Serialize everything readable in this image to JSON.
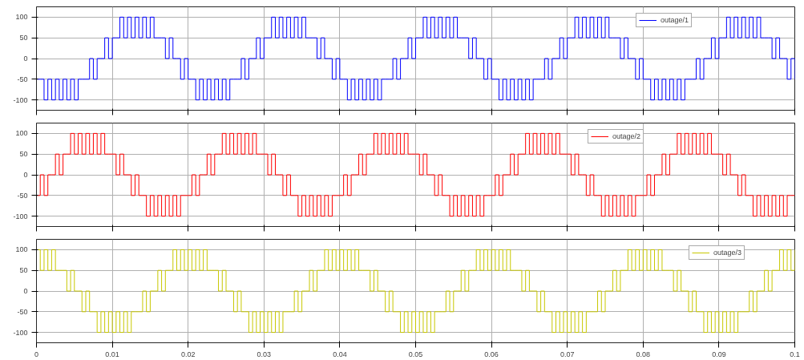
{
  "chart_data": [
    {
      "type": "step",
      "x": [
        0,
        0.0005,
        0.001,
        0.0015,
        0.002,
        0.0025,
        0.003,
        0.0035,
        0.004,
        0.0045,
        0.005,
        0.0055,
        0.006,
        0.0065,
        0.007,
        0.0075,
        0.008,
        0.0085,
        0.009,
        0.0095,
        0.01,
        0.0105,
        0.011,
        0.0115,
        0.012,
        0.0125,
        0.013,
        0.0135,
        0.014,
        0.0145,
        0.015,
        0.0155,
        0.016,
        0.0165,
        0.017,
        0.0175,
        0.018,
        0.0185,
        0.019,
        0.0195,
        0.02,
        0.0205,
        0.021,
        0.0215,
        0.022,
        0.0225,
        0.023,
        0.0235,
        0.024,
        0.0245,
        0.025,
        0.0255,
        0.026,
        0.0265,
        0.027,
        0.0275,
        0.028,
        0.0285,
        0.029,
        0.0295,
        0.03,
        0.0305,
        0.031,
        0.0315,
        0.032,
        0.0325,
        0.033,
        0.0335,
        0.034,
        0.0345,
        0.035,
        0.0355,
        0.036,
        0.0365,
        0.037,
        0.0375,
        0.038,
        0.0385,
        0.039,
        0.0395,
        0.04,
        0.0405,
        0.041,
        0.0415,
        0.042,
        0.0425,
        0.043,
        0.0435,
        0.044,
        0.0445,
        0.045,
        0.0455,
        0.046,
        0.0465,
        0.047,
        0.0475,
        0.048,
        0.0485,
        0.049,
        0.0495,
        0.05,
        0.0505,
        0.051,
        0.0515,
        0.052,
        0.0525,
        0.053,
        0.0535,
        0.054,
        0.0545,
        0.055,
        0.0555,
        0.056,
        0.0565,
        0.057,
        0.0575,
        0.058,
        0.0585,
        0.059,
        0.0595,
        0.06,
        0.0605,
        0.061,
        0.0615,
        0.062,
        0.0625,
        0.063,
        0.0635,
        0.064,
        0.0645,
        0.065,
        0.0655,
        0.066,
        0.0665,
        0.067,
        0.0675,
        0.068,
        0.0685,
        0.069,
        0.0695,
        0.07,
        0.0705,
        0.071,
        0.0715,
        0.072,
        0.0725,
        0.073,
        0.0735,
        0.074,
        0.0745,
        0.075,
        0.0755,
        0.076,
        0.0765,
        0.077,
        0.0775,
        0.078,
        0.0785,
        0.079,
        0.0795,
        0.08,
        0.0805,
        0.081,
        0.0815,
        0.082,
        0.0825,
        0.083,
        0.0835,
        0.084,
        0.0845,
        0.085,
        0.0855,
        0.086,
        0.0865,
        0.087,
        0.0875,
        0.088,
        0.0885,
        0.089,
        0.0895,
        0.09,
        0.0905,
        0.091,
        0.0915,
        0.092,
        0.0925,
        0.093,
        0.0935,
        0.094,
        0.0945,
        0.095,
        0.0955,
        0.096,
        0.0965,
        0.097,
        0.0975,
        0.098,
        0.0985,
        0.099,
        0.0995,
        0.1
      ],
      "series": [
        {
          "name": "outage/1",
          "color": "#0000ff",
          "values": [
            -50,
            -50,
            -100,
            -50,
            -100,
            -50,
            -100,
            -50,
            -100,
            -50,
            -100,
            -50,
            -50,
            -50,
            0,
            -50,
            0,
            0,
            50,
            0,
            50,
            50,
            100,
            50,
            100,
            50,
            100,
            50,
            100,
            50,
            100,
            50,
            50,
            50,
            0,
            50,
            0,
            0,
            -50,
            0,
            -50,
            -50,
            -100,
            -50,
            -100,
            -50,
            -100,
            -50,
            -100,
            -50,
            -100,
            -50,
            -50,
            -50,
            0,
            -50,
            0,
            0,
            50,
            0,
            50,
            50,
            100,
            50,
            100,
            50,
            100,
            50,
            100,
            50,
            100,
            50,
            50,
            50,
            0,
            50,
            0,
            0,
            -50,
            0,
            -50,
            -50,
            -100,
            -50,
            -100,
            -50,
            -100,
            -50,
            -100,
            -50,
            -100,
            -50,
            -50,
            -50,
            0,
            -50,
            0,
            0,
            50,
            0,
            50,
            50,
            100,
            50,
            100,
            50,
            100,
            50,
            100,
            50,
            100,
            50,
            50,
            50,
            0,
            50,
            0,
            0,
            -50,
            0,
            -50,
            -50,
            -100,
            -50,
            -100,
            -50,
            -100,
            -50,
            -100,
            -50,
            -100,
            -50,
            -50,
            -50,
            0,
            -50,
            0,
            0,
            50,
            0,
            50,
            50,
            100,
            50,
            100,
            50,
            100,
            50,
            100,
            50,
            100,
            50,
            50,
            50,
            0,
            50,
            0,
            0,
            -50,
            0,
            -50,
            -50,
            -100,
            -50,
            -100,
            -50,
            -100,
            -50,
            -100,
            -50,
            -100,
            -50,
            -50,
            -50,
            0,
            -50,
            0,
            0,
            50,
            0,
            50,
            50,
            100,
            50,
            100,
            50,
            100,
            50,
            100,
            50,
            100,
            50,
            50,
            50,
            0,
            50,
            0,
            0,
            -50,
            0,
            -50
          ]
        }
      ],
      "xlim": [
        0,
        0.1
      ],
      "xticks": [
        0,
        0.01,
        0.02,
        0.03,
        0.04,
        0.05,
        0.06,
        0.07,
        0.08,
        0.09,
        0.1
      ],
      "ylim": [
        -125,
        125
      ],
      "yticks": [
        -100,
        -50,
        0,
        50,
        100
      ],
      "grid": true,
      "legend": "top right",
      "tick_labels": "y"
    },
    {
      "type": "step",
      "x": [
        0,
        0.0005,
        0.001,
        0.0015,
        0.002,
        0.0025,
        0.003,
        0.0035,
        0.004,
        0.0045,
        0.005,
        0.0055,
        0.006,
        0.0065,
        0.007,
        0.0075,
        0.008,
        0.0085,
        0.009,
        0.0095,
        0.01,
        0.0105,
        0.011,
        0.0115,
        0.012,
        0.0125,
        0.013,
        0.0135,
        0.014,
        0.0145,
        0.015,
        0.0155,
        0.016,
        0.0165,
        0.017,
        0.0175,
        0.018,
        0.0185,
        0.019,
        0.0195,
        0.02,
        0.0205,
        0.021,
        0.0215,
        0.022,
        0.0225,
        0.023,
        0.0235,
        0.024,
        0.0245,
        0.025,
        0.0255,
        0.026,
        0.0265,
        0.027,
        0.0275,
        0.028,
        0.0285,
        0.029,
        0.0295,
        0.03,
        0.0305,
        0.031,
        0.0315,
        0.032,
        0.0325,
        0.033,
        0.0335,
        0.034,
        0.0345,
        0.035,
        0.0355,
        0.036,
        0.0365,
        0.037,
        0.0375,
        0.038,
        0.0385,
        0.039,
        0.0395,
        0.04,
        0.0405,
        0.041,
        0.0415,
        0.042,
        0.0425,
        0.043,
        0.0435,
        0.044,
        0.0445,
        0.045,
        0.0455,
        0.046,
        0.0465,
        0.047,
        0.0475,
        0.048,
        0.0485,
        0.049,
        0.0495,
        0.05,
        0.0505,
        0.051,
        0.0515,
        0.052,
        0.0525,
        0.053,
        0.0535,
        0.054,
        0.0545,
        0.055,
        0.0555,
        0.056,
        0.0565,
        0.057,
        0.0575,
        0.058,
        0.0585,
        0.059,
        0.0595,
        0.06,
        0.0605,
        0.061,
        0.0615,
        0.062,
        0.0625,
        0.063,
        0.0635,
        0.064,
        0.0645,
        0.065,
        0.0655,
        0.066,
        0.0665,
        0.067,
        0.0675,
        0.068,
        0.0685,
        0.069,
        0.0695,
        0.07,
        0.0705,
        0.071,
        0.0715,
        0.072,
        0.0725,
        0.073,
        0.0735,
        0.074,
        0.0745,
        0.075,
        0.0755,
        0.076,
        0.0765,
        0.077,
        0.0775,
        0.078,
        0.0785,
        0.079,
        0.0795,
        0.08,
        0.0805,
        0.081,
        0.0815,
        0.082,
        0.0825,
        0.083,
        0.0835,
        0.084,
        0.0845,
        0.085,
        0.0855,
        0.086,
        0.0865,
        0.087,
        0.0875,
        0.088,
        0.0885,
        0.089,
        0.0895,
        0.09,
        0.0905,
        0.091,
        0.0915,
        0.092,
        0.0925,
        0.093,
        0.0935,
        0.094,
        0.0945,
        0.095,
        0.0955,
        0.096,
        0.0965,
        0.097,
        0.0975,
        0.098,
        0.0985,
        0.099,
        0.0995,
        0.1
      ],
      "series": [
        {
          "name": "outage/2",
          "color": "#ff0000",
          "values": [
            -50,
            0,
            -50,
            0,
            0,
            50,
            0,
            50,
            50,
            100,
            50,
            100,
            50,
            100,
            50,
            100,
            50,
            100,
            50,
            50,
            50,
            0,
            50,
            0,
            0,
            -50,
            0,
            -50,
            -50,
            -100,
            -50,
            -100,
            -50,
            -100,
            -50,
            -100,
            -50,
            -100,
            -50,
            -50,
            -50,
            0,
            -50,
            0,
            0,
            50,
            0,
            50,
            50,
            100,
            50,
            100,
            50,
            100,
            50,
            100,
            50,
            100,
            50,
            50,
            50,
            0,
            50,
            0,
            0,
            -50,
            0,
            -50,
            -50,
            -100,
            -50,
            -100,
            -50,
            -100,
            -50,
            -100,
            -50,
            -100,
            -50,
            -50,
            -50,
            0,
            -50,
            0,
            0,
            50,
            0,
            50,
            50,
            100,
            50,
            100,
            50,
            100,
            50,
            100,
            50,
            100,
            50,
            50,
            50,
            0,
            50,
            0,
            0,
            -50,
            0,
            -50,
            -50,
            -100,
            -50,
            -100,
            -50,
            -100,
            -50,
            -100,
            -50,
            -100,
            -50,
            -50,
            -50,
            0,
            -50,
            0,
            0,
            50,
            0,
            50,
            50,
            100,
            50,
            100,
            50,
            100,
            50,
            100,
            50,
            100,
            50,
            50,
            50,
            0,
            50,
            0,
            0,
            -50,
            0,
            -50,
            -50,
            -100,
            -50,
            -100,
            -50,
            -100,
            -50,
            -100,
            -50,
            -100,
            -50,
            -50,
            -50,
            0,
            -50,
            0,
            0,
            50,
            0,
            50,
            50,
            100,
            50,
            100,
            50,
            100,
            50,
            100,
            50,
            100,
            50,
            50,
            50,
            0,
            50,
            0,
            0,
            -50,
            0,
            -50,
            -50,
            -100,
            -50,
            -100,
            -50,
            -100,
            -50,
            -100,
            -50,
            -100,
            -50,
            -50,
            -50
          ]
        }
      ],
      "xlim": [
        0,
        0.1
      ],
      "xticks": [
        0,
        0.01,
        0.02,
        0.03,
        0.04,
        0.05,
        0.06,
        0.07,
        0.08,
        0.09,
        0.1
      ],
      "ylim": [
        -125,
        125
      ],
      "yticks": [
        -100,
        -50,
        0,
        50,
        100
      ],
      "grid": true,
      "legend": "top right",
      "tick_labels": "y"
    },
    {
      "type": "step",
      "x": [
        0,
        0.0005,
        0.001,
        0.0015,
        0.002,
        0.0025,
        0.003,
        0.0035,
        0.004,
        0.0045,
        0.005,
        0.0055,
        0.006,
        0.0065,
        0.007,
        0.0075,
        0.008,
        0.0085,
        0.009,
        0.0095,
        0.01,
        0.0105,
        0.011,
        0.0115,
        0.012,
        0.0125,
        0.013,
        0.0135,
        0.014,
        0.0145,
        0.015,
        0.0155,
        0.016,
        0.0165,
        0.017,
        0.0175,
        0.018,
        0.0185,
        0.019,
        0.0195,
        0.02,
        0.0205,
        0.021,
        0.0215,
        0.022,
        0.0225,
        0.023,
        0.0235,
        0.024,
        0.0245,
        0.025,
        0.0255,
        0.026,
        0.0265,
        0.027,
        0.0275,
        0.028,
        0.0285,
        0.029,
        0.0295,
        0.03,
        0.0305,
        0.031,
        0.0315,
        0.032,
        0.0325,
        0.033,
        0.0335,
        0.034,
        0.0345,
        0.035,
        0.0355,
        0.036,
        0.0365,
        0.037,
        0.0375,
        0.038,
        0.0385,
        0.039,
        0.0395,
        0.04,
        0.0405,
        0.041,
        0.0415,
        0.042,
        0.0425,
        0.043,
        0.0435,
        0.044,
        0.0445,
        0.045,
        0.0455,
        0.046,
        0.0465,
        0.047,
        0.0475,
        0.048,
        0.0485,
        0.049,
        0.0495,
        0.05,
        0.0505,
        0.051,
        0.0515,
        0.052,
        0.0525,
        0.053,
        0.0535,
        0.054,
        0.0545,
        0.055,
        0.0555,
        0.056,
        0.0565,
        0.057,
        0.0575,
        0.058,
        0.0585,
        0.059,
        0.0595,
        0.06,
        0.0605,
        0.061,
        0.0615,
        0.062,
        0.0625,
        0.063,
        0.0635,
        0.064,
        0.0645,
        0.065,
        0.0655,
        0.066,
        0.0665,
        0.067,
        0.0675,
        0.068,
        0.0685,
        0.069,
        0.0695,
        0.07,
        0.0705,
        0.071,
        0.0715,
        0.072,
        0.0725,
        0.073,
        0.0735,
        0.074,
        0.0745,
        0.075,
        0.0755,
        0.076,
        0.0765,
        0.077,
        0.0775,
        0.078,
        0.0785,
        0.079,
        0.0795,
        0.08,
        0.0805,
        0.081,
        0.0815,
        0.082,
        0.0825,
        0.083,
        0.0835,
        0.084,
        0.0845,
        0.085,
        0.0855,
        0.086,
        0.0865,
        0.087,
        0.0875,
        0.088,
        0.0885,
        0.089,
        0.0895,
        0.09,
        0.0905,
        0.091,
        0.0915,
        0.092,
        0.0925,
        0.093,
        0.0935,
        0.094,
        0.0945,
        0.095,
        0.0955,
        0.096,
        0.0965,
        0.097,
        0.0975,
        0.098,
        0.0985,
        0.099,
        0.0995,
        0.1
      ],
      "series": [
        {
          "name": "outage/3",
          "color": "#c8c800",
          "values": [
            100,
            50,
            100,
            50,
            100,
            50,
            50,
            50,
            0,
            50,
            0,
            0,
            -50,
            0,
            -50,
            -50,
            -100,
            -50,
            -100,
            -50,
            -100,
            -50,
            -100,
            -50,
            -100,
            -50,
            -50,
            -50,
            0,
            -50,
            0,
            0,
            50,
            0,
            50,
            50,
            100,
            50,
            100,
            50,
            100,
            50,
            100,
            50,
            100,
            50,
            50,
            50,
            0,
            50,
            0,
            0,
            -50,
            0,
            -50,
            -50,
            -100,
            -50,
            -100,
            -50,
            -100,
            -50,
            -100,
            -50,
            -100,
            -50,
            -50,
            -50,
            0,
            -50,
            0,
            0,
            50,
            0,
            50,
            50,
            100,
            50,
            100,
            50,
            100,
            50,
            100,
            50,
            100,
            50,
            50,
            50,
            0,
            50,
            0,
            0,
            -50,
            0,
            -50,
            -50,
            -100,
            -50,
            -100,
            -50,
            -100,
            -50,
            -100,
            -50,
            -100,
            -50,
            -50,
            -50,
            0,
            -50,
            0,
            0,
            50,
            0,
            50,
            50,
            100,
            50,
            100,
            50,
            100,
            50,
            100,
            50,
            100,
            50,
            50,
            50,
            0,
            50,
            0,
            0,
            -50,
            0,
            -50,
            -50,
            -100,
            -50,
            -100,
            -50,
            -100,
            -50,
            -100,
            -50,
            -100,
            -50,
            -50,
            -50,
            0,
            -50,
            0,
            0,
            50,
            0,
            50,
            50,
            100,
            50,
            100,
            50,
            100,
            50,
            100,
            50,
            100,
            50,
            50,
            50,
            0,
            50,
            0,
            0,
            -50,
            0,
            -50,
            -50,
            -100,
            -50,
            -100,
            -50,
            -100,
            -50,
            -100,
            -50,
            -100,
            -50,
            -50,
            -50,
            0,
            -50,
            0,
            0,
            50,
            0,
            50,
            50,
            100,
            50,
            100,
            50,
            100
          ]
        }
      ],
      "xlim": [
        0,
        0.1
      ],
      "xticks": [
        {
          "value": 0,
          "label": "0"
        },
        0.01,
        0.02,
        0.03,
        0.04,
        0.05,
        0.06,
        0.07,
        0.08,
        0.09,
        0.1
      ],
      "ylim": [
        -125,
        125
      ],
      "yticks": [
        -100,
        -50,
        0,
        50,
        100
      ],
      "grid": true,
      "legend": "top right"
    }
  ]
}
